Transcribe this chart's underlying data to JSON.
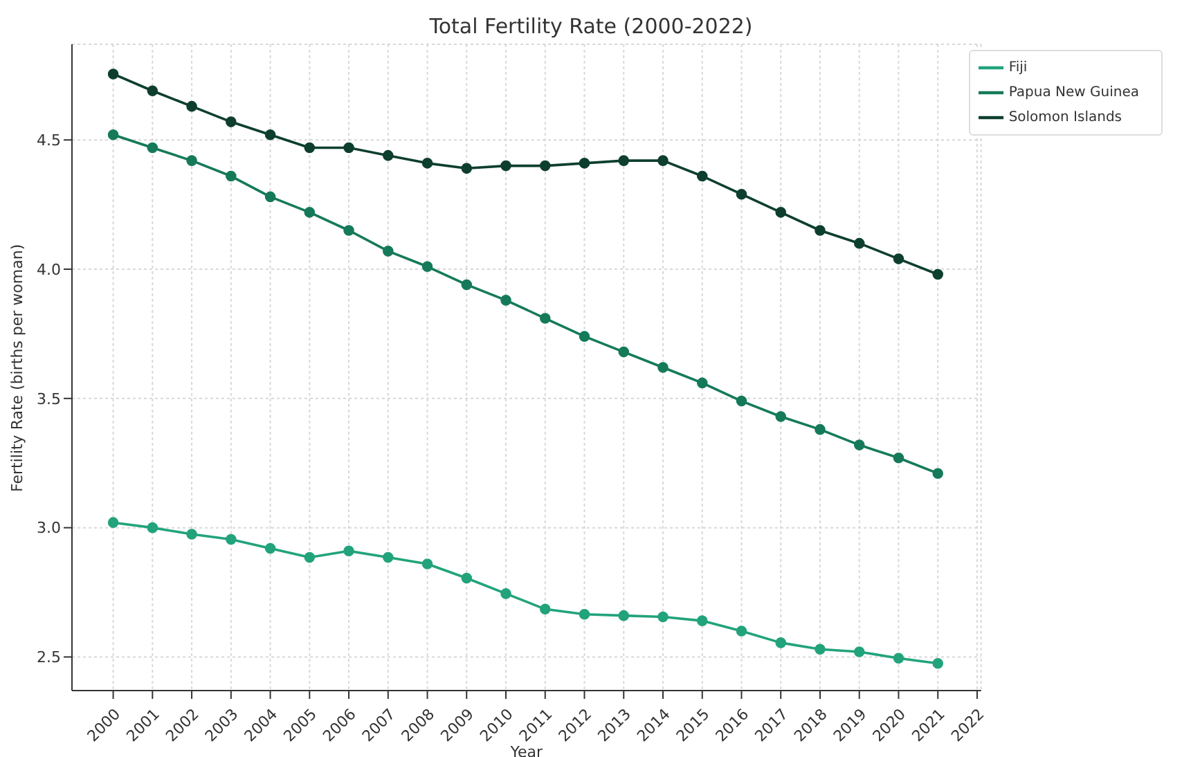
{
  "chart_data": {
    "type": "line",
    "title": "Total Fertility Rate (2000-2022)",
    "xlabel": "Year",
    "ylabel": "Fertility Rate (births per woman)",
    "x": [
      2000,
      2001,
      2002,
      2003,
      2004,
      2005,
      2006,
      2007,
      2008,
      2009,
      2010,
      2011,
      2012,
      2013,
      2014,
      2015,
      2016,
      2017,
      2018,
      2019,
      2020,
      2021
    ],
    "series": [
      {
        "name": "Fiji",
        "color": "#22a37b",
        "values": [
          3.02,
          3.0,
          2.975,
          2.955,
          2.92,
          2.885,
          2.91,
          2.885,
          2.86,
          2.805,
          2.745,
          2.685,
          2.665,
          2.66,
          2.655,
          2.64,
          2.6,
          2.555,
          2.53,
          2.52,
          2.495,
          2.475
        ]
      },
      {
        "name": "Papua New Guinea",
        "color": "#157a5a",
        "values": [
          4.52,
          4.47,
          4.42,
          4.36,
          4.28,
          4.22,
          4.15,
          4.07,
          4.01,
          3.94,
          3.88,
          3.81,
          3.74,
          3.68,
          3.62,
          3.56,
          3.49,
          3.43,
          3.38,
          3.32,
          3.27,
          3.21
        ]
      },
      {
        "name": "Solomon Islands",
        "color": "#0e3f2e",
        "values": [
          4.755,
          4.69,
          4.63,
          4.57,
          4.52,
          4.47,
          4.47,
          4.44,
          4.41,
          4.39,
          4.4,
          4.4,
          4.41,
          4.42,
          4.42,
          4.36,
          4.29,
          4.22,
          4.15,
          4.1,
          4.04,
          3.98
        ]
      }
    ],
    "xlim": [
      1998.95,
      2022.1
    ],
    "xticks": [
      2000,
      2001,
      2002,
      2003,
      2004,
      2005,
      2006,
      2007,
      2008,
      2009,
      2010,
      2011,
      2012,
      2013,
      2014,
      2015,
      2016,
      2017,
      2018,
      2019,
      2020,
      2021,
      2022
    ],
    "ylim": [
      2.37,
      4.87
    ],
    "yticks": [
      {
        "value": 2.5,
        "label": "2.5"
      },
      {
        "value": 3.0,
        "label": "3.0"
      },
      {
        "value": 3.5,
        "label": "3.5"
      },
      {
        "value": 4.0,
        "label": "4.0"
      },
      {
        "value": 4.5,
        "label": "4.5"
      }
    ],
    "grid": true,
    "legend": "top right",
    "marker": "circle",
    "line_style": "solid"
  }
}
